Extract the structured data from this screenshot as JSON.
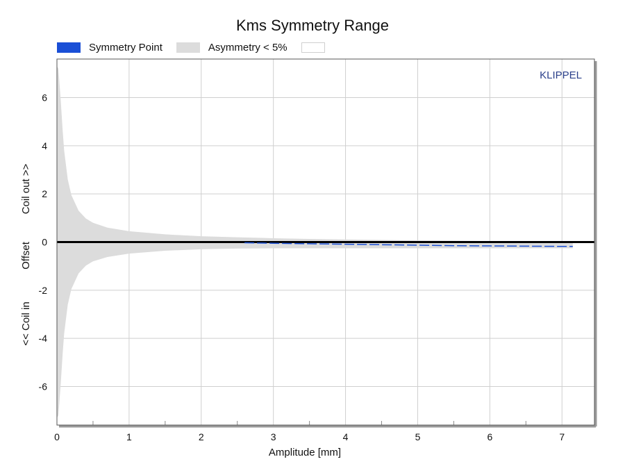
{
  "chart_data": {
    "type": "area",
    "title": "Kms Symmetry Range",
    "xlabel": "Amplitude [mm]",
    "ylabel_parts": [
      "<< Coil in",
      "Offset",
      "Coil out >>"
    ],
    "xlim": [
      0,
      7.45
    ],
    "ylim": [
      -7.6,
      7.6
    ],
    "xticks": [
      0,
      1,
      2,
      3,
      4,
      5,
      6,
      7
    ],
    "yticks": [
      -6,
      -4,
      -2,
      0,
      2,
      4,
      6
    ],
    "grid": true,
    "legend_position": "top-left",
    "watermark": "KLIPPEL",
    "series": [
      {
        "name": "Symmetry Point",
        "color": "#1a4fd6",
        "x": [
          2.6,
          3.0,
          3.5,
          4.0,
          4.5,
          5.0,
          5.5,
          6.0,
          6.5,
          7.0,
          7.15
        ],
        "values": [
          -0.03,
          -0.05,
          -0.07,
          -0.09,
          -0.11,
          -0.13,
          -0.15,
          -0.16,
          -0.17,
          -0.18,
          -0.18
        ]
      },
      {
        "name": "Asymmetry < 5%",
        "color": "#dcdcdc",
        "x": [
          0.0,
          0.02,
          0.05,
          0.08,
          0.1,
          0.15,
          0.2,
          0.3,
          0.4,
          0.5,
          0.7,
          1.0,
          1.5,
          2.0,
          2.5,
          3.0,
          3.5,
          4.0,
          5.0,
          6.0,
          7.0,
          7.15
        ],
        "upper": [
          7.3,
          7.2,
          6.0,
          4.6,
          3.8,
          2.6,
          1.95,
          1.3,
          0.98,
          0.8,
          0.6,
          0.45,
          0.32,
          0.24,
          0.2,
          0.16,
          0.13,
          0.11,
          0.07,
          0.04,
          0.02,
          0.02
        ],
        "lower": [
          -7.3,
          -7.2,
          -6.0,
          -4.6,
          -3.8,
          -2.6,
          -1.95,
          -1.3,
          -0.98,
          -0.8,
          -0.62,
          -0.48,
          -0.36,
          -0.3,
          -0.27,
          -0.26,
          -0.26,
          -0.26,
          -0.26,
          -0.26,
          -0.26,
          -0.26
        ]
      },
      {
        "name": "",
        "color": "#ffffff"
      }
    ]
  }
}
